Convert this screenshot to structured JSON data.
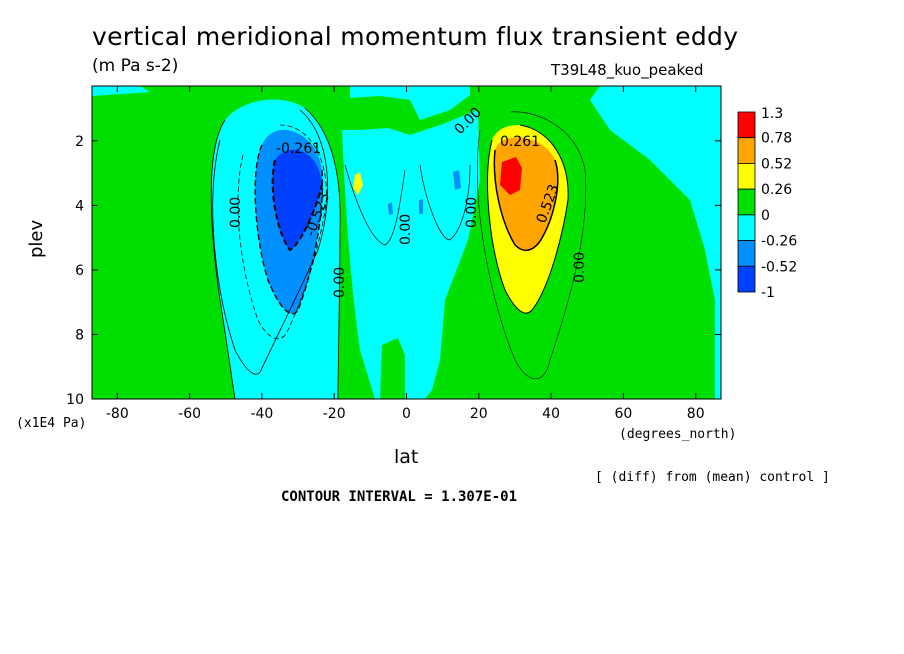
{
  "chart_data": {
    "type": "heatmap",
    "title": "vertical meridional momentum flux transient eddy",
    "subtitle": "(m Pa s-2)",
    "run_label": "T39L48_kuo_peaked",
    "xlabel": "lat",
    "xlabel_units": "(degrees_north)",
    "ylabel": "plev",
    "ylabel_units": "(x1E4 Pa)",
    "x_ticks": [
      "-80",
      "-60",
      "-40",
      "-20",
      "0",
      "20",
      "40",
      "60",
      "80"
    ],
    "y_ticks": [
      "2",
      "4",
      "6",
      "8",
      "10"
    ],
    "xlim": [
      -87,
      87
    ],
    "ylim": [
      10,
      0.3
    ],
    "colorbar_levels": [
      "1.3",
      "0.78",
      "0.52",
      "0.26",
      "0",
      "-0.26",
      "-0.52",
      "-1"
    ],
    "colorbar_colors": [
      "#ff0000",
      "#ffa500",
      "#ffff00",
      "#00e000",
      "#00ffff",
      "#0090ff",
      "#0040ff"
    ],
    "contour_labels": [
      "-0.261",
      "-0.523",
      "0.261",
      "0.523",
      "0.00"
    ],
    "features": [
      {
        "name": "southern negative maximum",
        "lat": -32,
        "plev": 3.8,
        "value": -0.9
      },
      {
        "name": "northern positive maximum",
        "lat": 29,
        "plev": 3.0,
        "value": 1.1
      }
    ],
    "contour_interval_text": "CONTOUR INTERVAL = 1.307E-01",
    "note_text": "[ (diff) from (mean) control ]"
  }
}
